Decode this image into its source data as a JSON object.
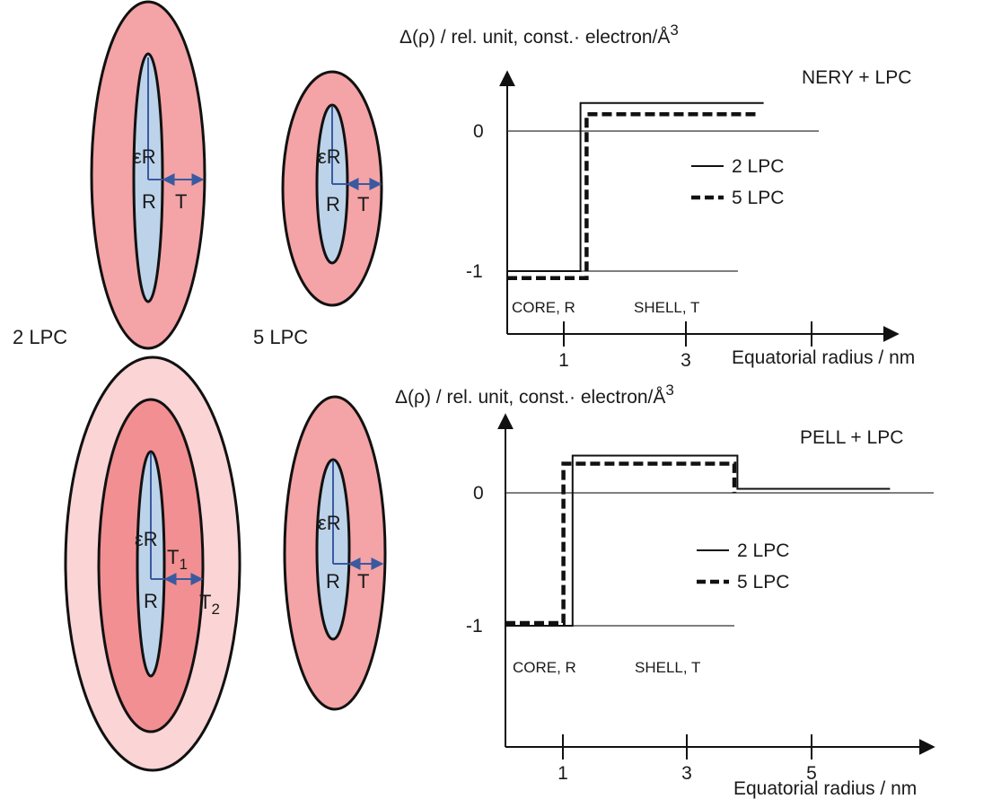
{
  "colors": {
    "shell": "#f4a3a6",
    "shell_inner": "#f28f92",
    "shell_outer": "#fbd4d5",
    "core": "#bcd3ea",
    "arrow": "#3a5aa0",
    "outline": "#111111"
  },
  "ellipses": {
    "a": {
      "label": "2 LPC",
      "eps_r": "εR",
      "r": "R",
      "t": "T"
    },
    "b": {
      "label": "5 LPC",
      "eps_r": "εR",
      "r": "R",
      "t": "T"
    },
    "c": {
      "eps_r": "εR",
      "r": "R",
      "t1": "T",
      "t1_sub": "1",
      "t2": "T",
      "t2_sub": "2"
    },
    "d": {
      "eps_r": "εR",
      "r": "R",
      "t": "T"
    }
  },
  "chart_data": [
    {
      "type": "line",
      "title": "NERY + LPC",
      "ylabel": "Δ(ρ) / rel. unit, const.· electron/Å",
      "ylabel_sup": "3",
      "xlabel": "Equatorial radius / nm",
      "x_ticks": [
        "1",
        "3"
      ],
      "y_ticks": [
        "0",
        "-1"
      ],
      "xlim": [
        0,
        6.5
      ],
      "ylim": [
        -1.4,
        0.4
      ],
      "annotations": [
        "CORE, R",
        "SHELL, T"
      ],
      "legend": {
        "position": "center-right"
      },
      "series": [
        {
          "name": "2 LPC",
          "style": "solid",
          "x": [
            0,
            1.2,
            1.2,
            4.2
          ],
          "y": [
            -1,
            -1,
            0.2,
            0.2
          ]
        },
        {
          "name": "5 LPC",
          "style": "dashed",
          "x": [
            0,
            1.3,
            1.3,
            4.1
          ],
          "y": [
            -1.05,
            -1.05,
            0.12,
            0.12
          ]
        }
      ]
    },
    {
      "type": "line",
      "title": "PELL + LPC",
      "ylabel": "Δ(ρ) / rel. unit, const.· electron/Å",
      "ylabel_sup": "3",
      "xlabel": "Equatorial radius / nm",
      "x_ticks": [
        "1",
        "3",
        "5"
      ],
      "y_ticks": [
        "0",
        "-1"
      ],
      "xlim": [
        0,
        6.5
      ],
      "ylim": [
        -1.6,
        0.4
      ],
      "annotations": [
        "CORE, R",
        "SHELL, T"
      ],
      "legend": {
        "position": "center-right"
      },
      "series": [
        {
          "name": "2 LPC",
          "style": "solid",
          "x": [
            0,
            1.1,
            1.1,
            3.8,
            3.8,
            6.3
          ],
          "y": [
            -1,
            -1,
            0.28,
            0.28,
            0.03,
            0.03
          ]
        },
        {
          "name": "5 LPC",
          "style": "dashed",
          "x": [
            0,
            0.95,
            0.95,
            3.75,
            3.75
          ],
          "y": [
            -0.98,
            -0.98,
            0.22,
            0.22,
            0.0
          ]
        }
      ]
    }
  ]
}
